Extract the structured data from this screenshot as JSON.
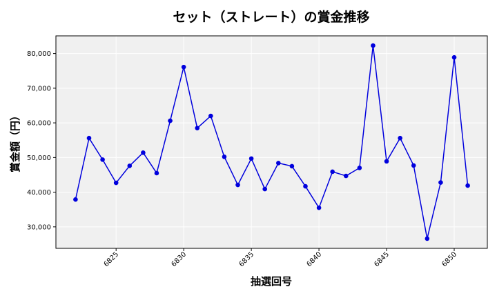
{
  "chart_data": {
    "type": "line",
    "title": "セット（ストレート）の賞金推移",
    "xlabel": "抽選回号",
    "ylabel": "賞金額（円）",
    "x": [
      6822,
      6823,
      6824,
      6825,
      6826,
      6827,
      6828,
      6829,
      6830,
      6831,
      6832,
      6833,
      6834,
      6835,
      6836,
      6837,
      6838,
      6839,
      6840,
      6841,
      6842,
      6843,
      6844,
      6845,
      6846,
      6847,
      6848,
      6849,
      6850,
      6851
    ],
    "series": [
      {
        "values": [
          37900,
          55600,
          49400,
          42700,
          47600,
          51400,
          45500,
          60600,
          76100,
          58500,
          62000,
          50200,
          42100,
          49700,
          40900,
          48400,
          47500,
          41700,
          35500,
          45900,
          44700,
          47000,
          82300,
          48900,
          55600,
          47700,
          26600,
          42800,
          78900,
          41900
        ],
        "color": "#0000dd"
      }
    ],
    "xlim": [
      6820.55,
      6852.45
    ],
    "ylim": [
      23800,
      85100
    ],
    "xticks": [
      6825,
      6830,
      6835,
      6840,
      6845,
      6850
    ],
    "xtick_labels": [
      "6825",
      "6830",
      "6835",
      "6840",
      "6845",
      "6850"
    ],
    "yticks": [
      30000,
      40000,
      50000,
      60000,
      70000,
      80000
    ],
    "ytick_labels": [
      "30,000",
      "40,000",
      "50,000",
      "60,000",
      "70,000",
      "80,000"
    ],
    "grid": true,
    "background": "#f0f0f0",
    "grid_color": "#ffffff"
  }
}
